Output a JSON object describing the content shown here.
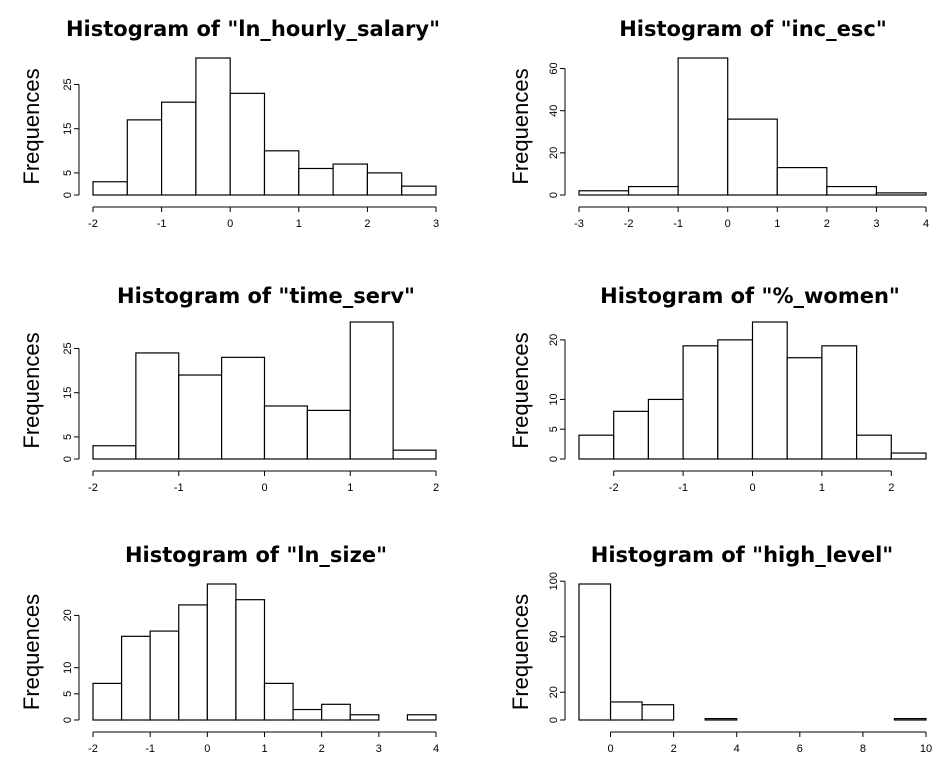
{
  "chart_data": [
    {
      "type": "bar",
      "title": "Histogram of \"ln_hourly_salary\"",
      "xlabel": "",
      "ylabel": "Frequences",
      "bin_edges": [
        -2,
        -1.5,
        -1,
        -0.5,
        0,
        0.5,
        1,
        1.5,
        2,
        2.5,
        3
      ],
      "values": [
        3,
        17,
        21,
        31,
        23,
        10,
        6,
        7,
        5,
        2
      ],
      "xlim": [
        -2,
        3
      ],
      "ylim": [
        0,
        31
      ],
      "xticks": [
        -2,
        -1,
        0,
        1,
        2,
        3
      ],
      "yticks": [
        0,
        5,
        15,
        25
      ],
      "grid": false
    },
    {
      "type": "bar",
      "title": "Histogram of \"inc_esc\"",
      "xlabel": "",
      "ylabel": "Frequences",
      "bin_edges": [
        -3,
        -2,
        -1,
        0,
        1,
        2,
        3,
        4
      ],
      "values": [
        2,
        4,
        65,
        36,
        13,
        4,
        1
      ],
      "xlim": [
        -3,
        4
      ],
      "ylim": [
        0,
        65
      ],
      "xticks": [
        -3,
        -2,
        -1,
        0,
        1,
        2,
        3,
        4
      ],
      "yticks": [
        0,
        20,
        40,
        60
      ],
      "grid": false
    },
    {
      "type": "bar",
      "title": "Histogram of \"time_serv\"",
      "xlabel": "",
      "ylabel": "Frequences",
      "bin_edges": [
        -2,
        -1.5,
        -1,
        -0.5,
        0,
        0.5,
        1,
        1.5,
        2
      ],
      "values": [
        3,
        24,
        19,
        23,
        12,
        11,
        31,
        2
      ],
      "xlim": [
        -2,
        2
      ],
      "ylim": [
        0,
        31
      ],
      "xticks": [
        -2,
        -1,
        0,
        1,
        2
      ],
      "yticks": [
        0,
        5,
        15,
        25
      ],
      "grid": false
    },
    {
      "type": "bar",
      "title": "Histogram of \"%_women\"",
      "xlabel": "",
      "ylabel": "Frequences",
      "bin_edges": [
        -2.5,
        -2,
        -1.5,
        -1,
        -0.5,
        0,
        0.5,
        1,
        1.5,
        2,
        2.5
      ],
      "values": [
        4,
        8,
        10,
        19,
        20,
        23,
        17,
        19,
        4,
        1
      ],
      "xlim": [
        -2.5,
        2.5
      ],
      "ylim": [
        0,
        23
      ],
      "xticks": [
        -2,
        -1,
        0,
        1,
        2
      ],
      "yticks": [
        0,
        5,
        10,
        20
      ],
      "grid": false
    },
    {
      "type": "bar",
      "title": "Histogram of \"ln_size\"",
      "xlabel": "",
      "ylabel": "Frequences",
      "bin_edges": [
        -2,
        -1.5,
        -1,
        -0.5,
        0,
        0.5,
        1,
        1.5,
        2,
        2.5,
        3,
        3.5,
        4
      ],
      "values": [
        7,
        16,
        17,
        22,
        26,
        23,
        7,
        2,
        3,
        1,
        0,
        1
      ],
      "xlim": [
        -2,
        4
      ],
      "ylim": [
        0,
        26
      ],
      "xticks": [
        -2,
        -1,
        0,
        1,
        2,
        3,
        4
      ],
      "yticks": [
        0,
        5,
        10,
        20
      ],
      "grid": false
    },
    {
      "type": "bar",
      "title": "Histogram of \"high_level\"",
      "xlabel": "",
      "ylabel": "Frequences",
      "bin_edges": [
        -1,
        0,
        1,
        2,
        3,
        4,
        5,
        6,
        7,
        8,
        9,
        10
      ],
      "values": [
        98,
        13,
        11,
        0,
        1,
        0,
        0,
        0,
        0,
        0,
        1
      ],
      "xlim": [
        -1,
        10
      ],
      "ylim": [
        0,
        98
      ],
      "xticks": [
        0,
        2,
        4,
        6,
        8,
        10
      ],
      "yticks": [
        0,
        20,
        60,
        100
      ],
      "grid": false
    }
  ]
}
